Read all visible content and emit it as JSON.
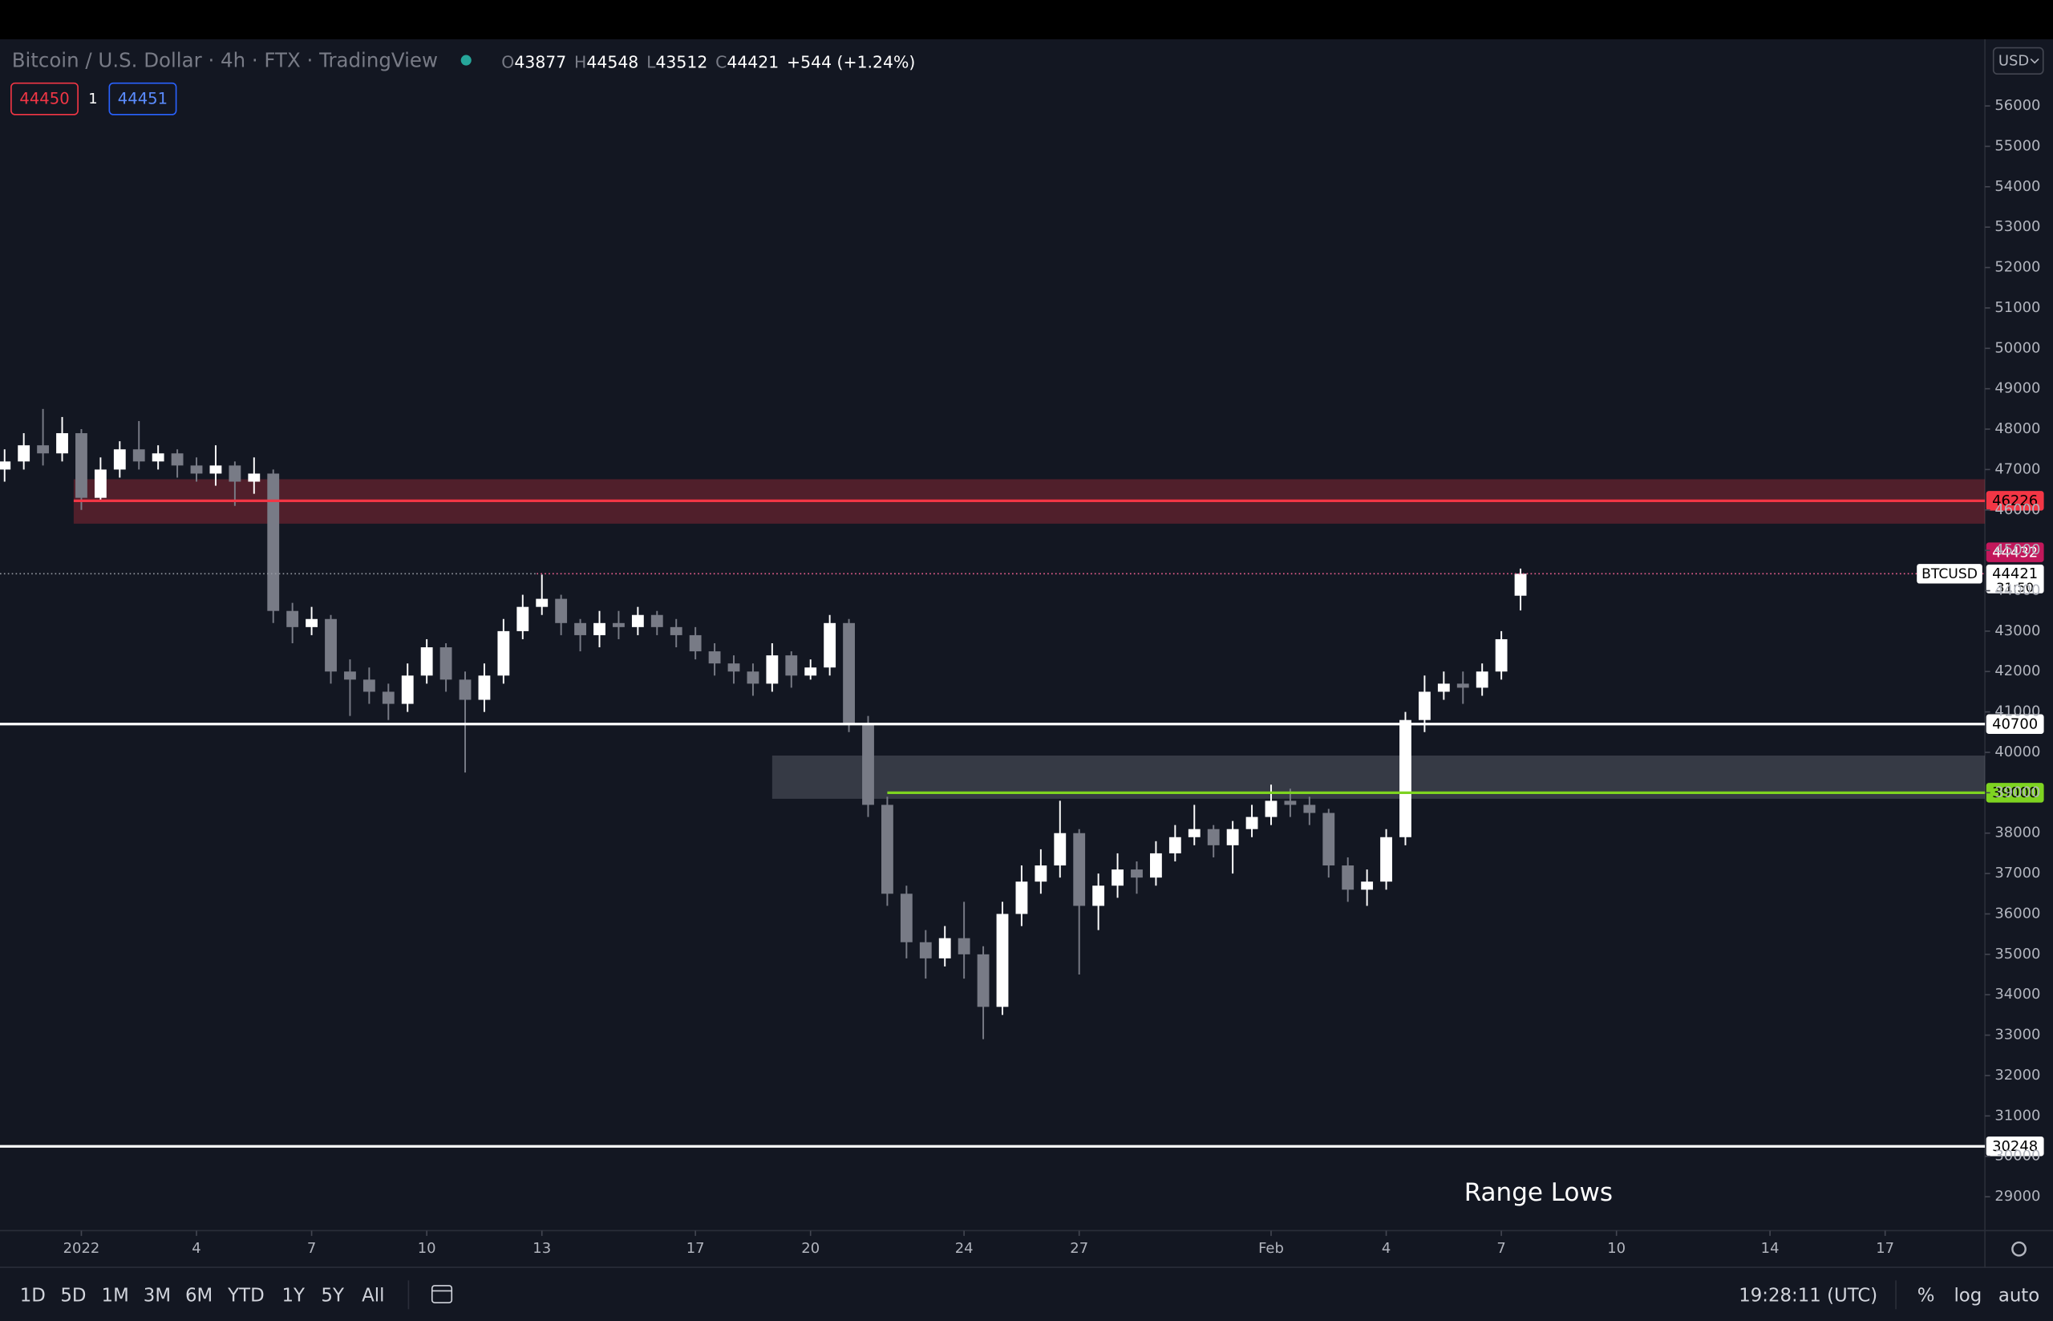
{
  "chart_data": {
    "type": "candlestick",
    "title": "Bitcoin / U.S. Dollar · 4h · FTX · TradingView",
    "header": {
      "o_label": "O",
      "open": 43877,
      "h_label": "H",
      "high": 44548,
      "l_label": "L",
      "low": 43512,
      "c_label": "C",
      "close": 44421,
      "change": "+544 (+1.24%)"
    },
    "order": {
      "sell": 44450,
      "qty": 1,
      "buy": 44451
    },
    "currency": "USD",
    "symbol": "BTCUSD",
    "countdown": "31:50",
    "alert_price": 44432,
    "annotation": "Range Lows",
    "bull_color": "#ffffff",
    "bear_color": "#787b86",
    "xlim": [
      -2.12,
      49.6
    ],
    "ylim": [
      28160,
      57650
    ],
    "xticks": [
      {
        "value": 0,
        "label": "2022"
      },
      {
        "value": 3,
        "label": "4"
      },
      {
        "value": 6,
        "label": "7"
      },
      {
        "value": 9,
        "label": "10"
      },
      {
        "value": 12,
        "label": "13"
      },
      {
        "value": 16,
        "label": "17"
      },
      {
        "value": 19,
        "label": "20"
      },
      {
        "value": 23,
        "label": "24"
      },
      {
        "value": 26,
        "label": "27"
      },
      {
        "value": 31,
        "label": "Feb"
      },
      {
        "value": 34,
        "label": "4"
      },
      {
        "value": 37,
        "label": "7"
      },
      {
        "value": 40,
        "label": "10"
      },
      {
        "value": 44,
        "label": "14"
      },
      {
        "value": 47,
        "label": "17"
      }
    ],
    "yticks": [
      29000,
      30000,
      31000,
      32000,
      33000,
      34000,
      35000,
      36000,
      37000,
      38000,
      39000,
      40000,
      41000,
      42000,
      43000,
      44000,
      45000,
      46000,
      47000,
      48000,
      49000,
      50000,
      51000,
      52000,
      53000,
      54000,
      55000,
      56000
    ],
    "levels": [
      {
        "value": 46226,
        "color": "#f23645",
        "start": -0.2
      },
      {
        "value": 40700,
        "color": "#ffffff",
        "start": -2.12
      },
      {
        "value": 39000,
        "color": "#7ed321",
        "start": 21.0
      },
      {
        "value": 30248,
        "color": "#ffffff",
        "start": -2.12
      }
    ],
    "zones": [
      {
        "from": 45660,
        "to": 46760,
        "start": -0.2,
        "color": "#f23645"
      },
      {
        "from": 38850,
        "to": 39920,
        "start": 18.0,
        "color": "#9598a1"
      }
    ],
    "candles": {
      "x": [
        -2,
        -1.5,
        -1,
        -0.5,
        0,
        0.5,
        1,
        1.5,
        2,
        2.5,
        3,
        3.5,
        4,
        4.5,
        5,
        5.5,
        6,
        6.5,
        7,
        7.5,
        8,
        8.5,
        9,
        9.5,
        10,
        10.5,
        11,
        11.5,
        12,
        12.5,
        13,
        13.5,
        14,
        14.5,
        15,
        15.5,
        16,
        16.5,
        17,
        17.5,
        18,
        18.5,
        19,
        19.5,
        20,
        20.5,
        21,
        21.5,
        22,
        22.5,
        23,
        23.5,
        24,
        24.5,
        25,
        25.5,
        26,
        26.5,
        27,
        27.5,
        28,
        28.5,
        29,
        29.5,
        30,
        30.5,
        31,
        31.5,
        32,
        32.5,
        33,
        33.5,
        34,
        34.5,
        35,
        35.5,
        36,
        36.5,
        37,
        37.5
      ],
      "open": [
        47000,
        47200,
        47600,
        47400,
        47900,
        46300,
        47000,
        47500,
        47200,
        47400,
        47100,
        46900,
        47100,
        46700,
        46900,
        43500,
        43100,
        43300,
        42000,
        41800,
        41500,
        41200,
        41900,
        42600,
        41800,
        41300,
        41900,
        43000,
        43600,
        43800,
        43200,
        42900,
        43200,
        43100,
        43400,
        43100,
        42900,
        42500,
        42200,
        42000,
        41700,
        42400,
        41900,
        42100,
        43200,
        40700,
        38700,
        36500,
        35300,
        34900,
        35400,
        35000,
        33700,
        36000,
        36800,
        37200,
        38000,
        36200,
        36700,
        37100,
        36900,
        37500,
        37900,
        38100,
        37700,
        38100,
        38400,
        38800,
        38700,
        38500,
        37200,
        36600,
        36800,
        37900,
        40800,
        41500,
        41700,
        41600,
        42000,
        43877
      ],
      "high": [
        47500,
        47900,
        48500,
        48300,
        48000,
        47300,
        47700,
        48200,
        47600,
        47500,
        47300,
        47600,
        47200,
        47300,
        47000,
        43700,
        43600,
        43400,
        42300,
        42100,
        41700,
        42200,
        42800,
        42700,
        42000,
        42200,
        43300,
        43900,
        44400,
        43900,
        43300,
        43500,
        43500,
        43600,
        43500,
        43300,
        43100,
        42700,
        42400,
        42200,
        42700,
        42500,
        42300,
        43400,
        43300,
        40900,
        38900,
        36700,
        35600,
        35700,
        36300,
        35200,
        36300,
        37200,
        37600,
        38800,
        38100,
        37000,
        37500,
        37300,
        37800,
        38200,
        38700,
        38200,
        38300,
        38700,
        39200,
        39100,
        38900,
        38600,
        37400,
        37100,
        38100,
        41000,
        41900,
        42000,
        42000,
        42200,
        43000,
        44548
      ],
      "low": [
        46700,
        47000,
        47100,
        47200,
        46000,
        46200,
        46800,
        47000,
        47000,
        46800,
        46700,
        46600,
        46100,
        46400,
        43200,
        42700,
        42900,
        41700,
        40900,
        41200,
        40800,
        41000,
        41700,
        41500,
        39500,
        41000,
        41700,
        42800,
        43400,
        42900,
        42500,
        42600,
        42800,
        42900,
        42900,
        42600,
        42300,
        41900,
        41700,
        41400,
        41500,
        41600,
        41800,
        41900,
        40500,
        38400,
        36200,
        34900,
        34400,
        34700,
        34400,
        32900,
        33500,
        35700,
        36500,
        36900,
        34500,
        35600,
        36400,
        36500,
        36700,
        37300,
        37700,
        37400,
        37000,
        37900,
        38200,
        38400,
        38200,
        36900,
        36300,
        36200,
        36600,
        37700,
        40500,
        41300,
        41200,
        41400,
        41800,
        43512
      ],
      "close": [
        47200,
        47600,
        47400,
        47900,
        46300,
        47000,
        47500,
        47200,
        47400,
        47100,
        46900,
        47100,
        46700,
        46900,
        43500,
        43100,
        43300,
        42000,
        41800,
        41500,
        41200,
        41900,
        42600,
        41800,
        41300,
        41900,
        43000,
        43600,
        43800,
        43200,
        42900,
        43200,
        43100,
        43400,
        43100,
        42900,
        42500,
        42200,
        42000,
        41700,
        42400,
        41900,
        42100,
        43200,
        40700,
        38700,
        36500,
        35300,
        34900,
        35400,
        35000,
        33700,
        36000,
        36800,
        37200,
        38000,
        36200,
        36700,
        37100,
        36900,
        37500,
        37900,
        38100,
        37700,
        38100,
        38400,
        38800,
        38700,
        38500,
        37200,
        36600,
        36800,
        37900,
        40800,
        41500,
        41700,
        41600,
        42000,
        42800,
        44421
      ]
    },
    "toolbar": {
      "ranges": [
        "1D",
        "5D",
        "1M",
        "3M",
        "6M",
        "YTD",
        "1Y",
        "5Y",
        "All"
      ],
      "time": "19:28:11 (UTC)",
      "percent": "%",
      "log": "log",
      "auto": "auto"
    }
  }
}
